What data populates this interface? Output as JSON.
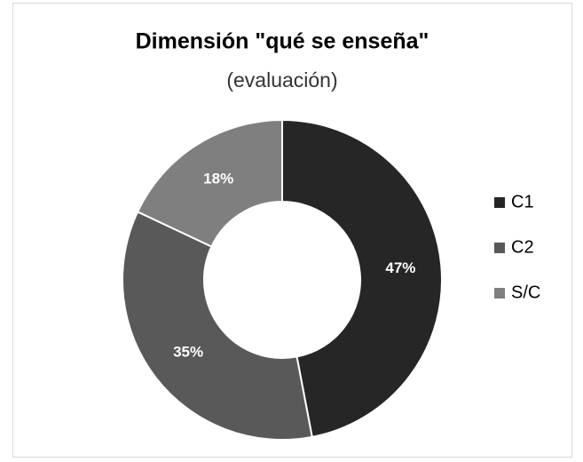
{
  "chart_data": {
    "type": "donut",
    "title": "Dimensión \"qué se enseña\"",
    "subtitle": "(evaluación)",
    "categories": [
      "C1",
      "C2",
      "S/C"
    ],
    "values": [
      47,
      35,
      18
    ],
    "value_labels": [
      "47%",
      "35%",
      "18%"
    ],
    "colors": [
      "#262626",
      "#595959",
      "#7f7f7f"
    ],
    "legend": "right"
  }
}
